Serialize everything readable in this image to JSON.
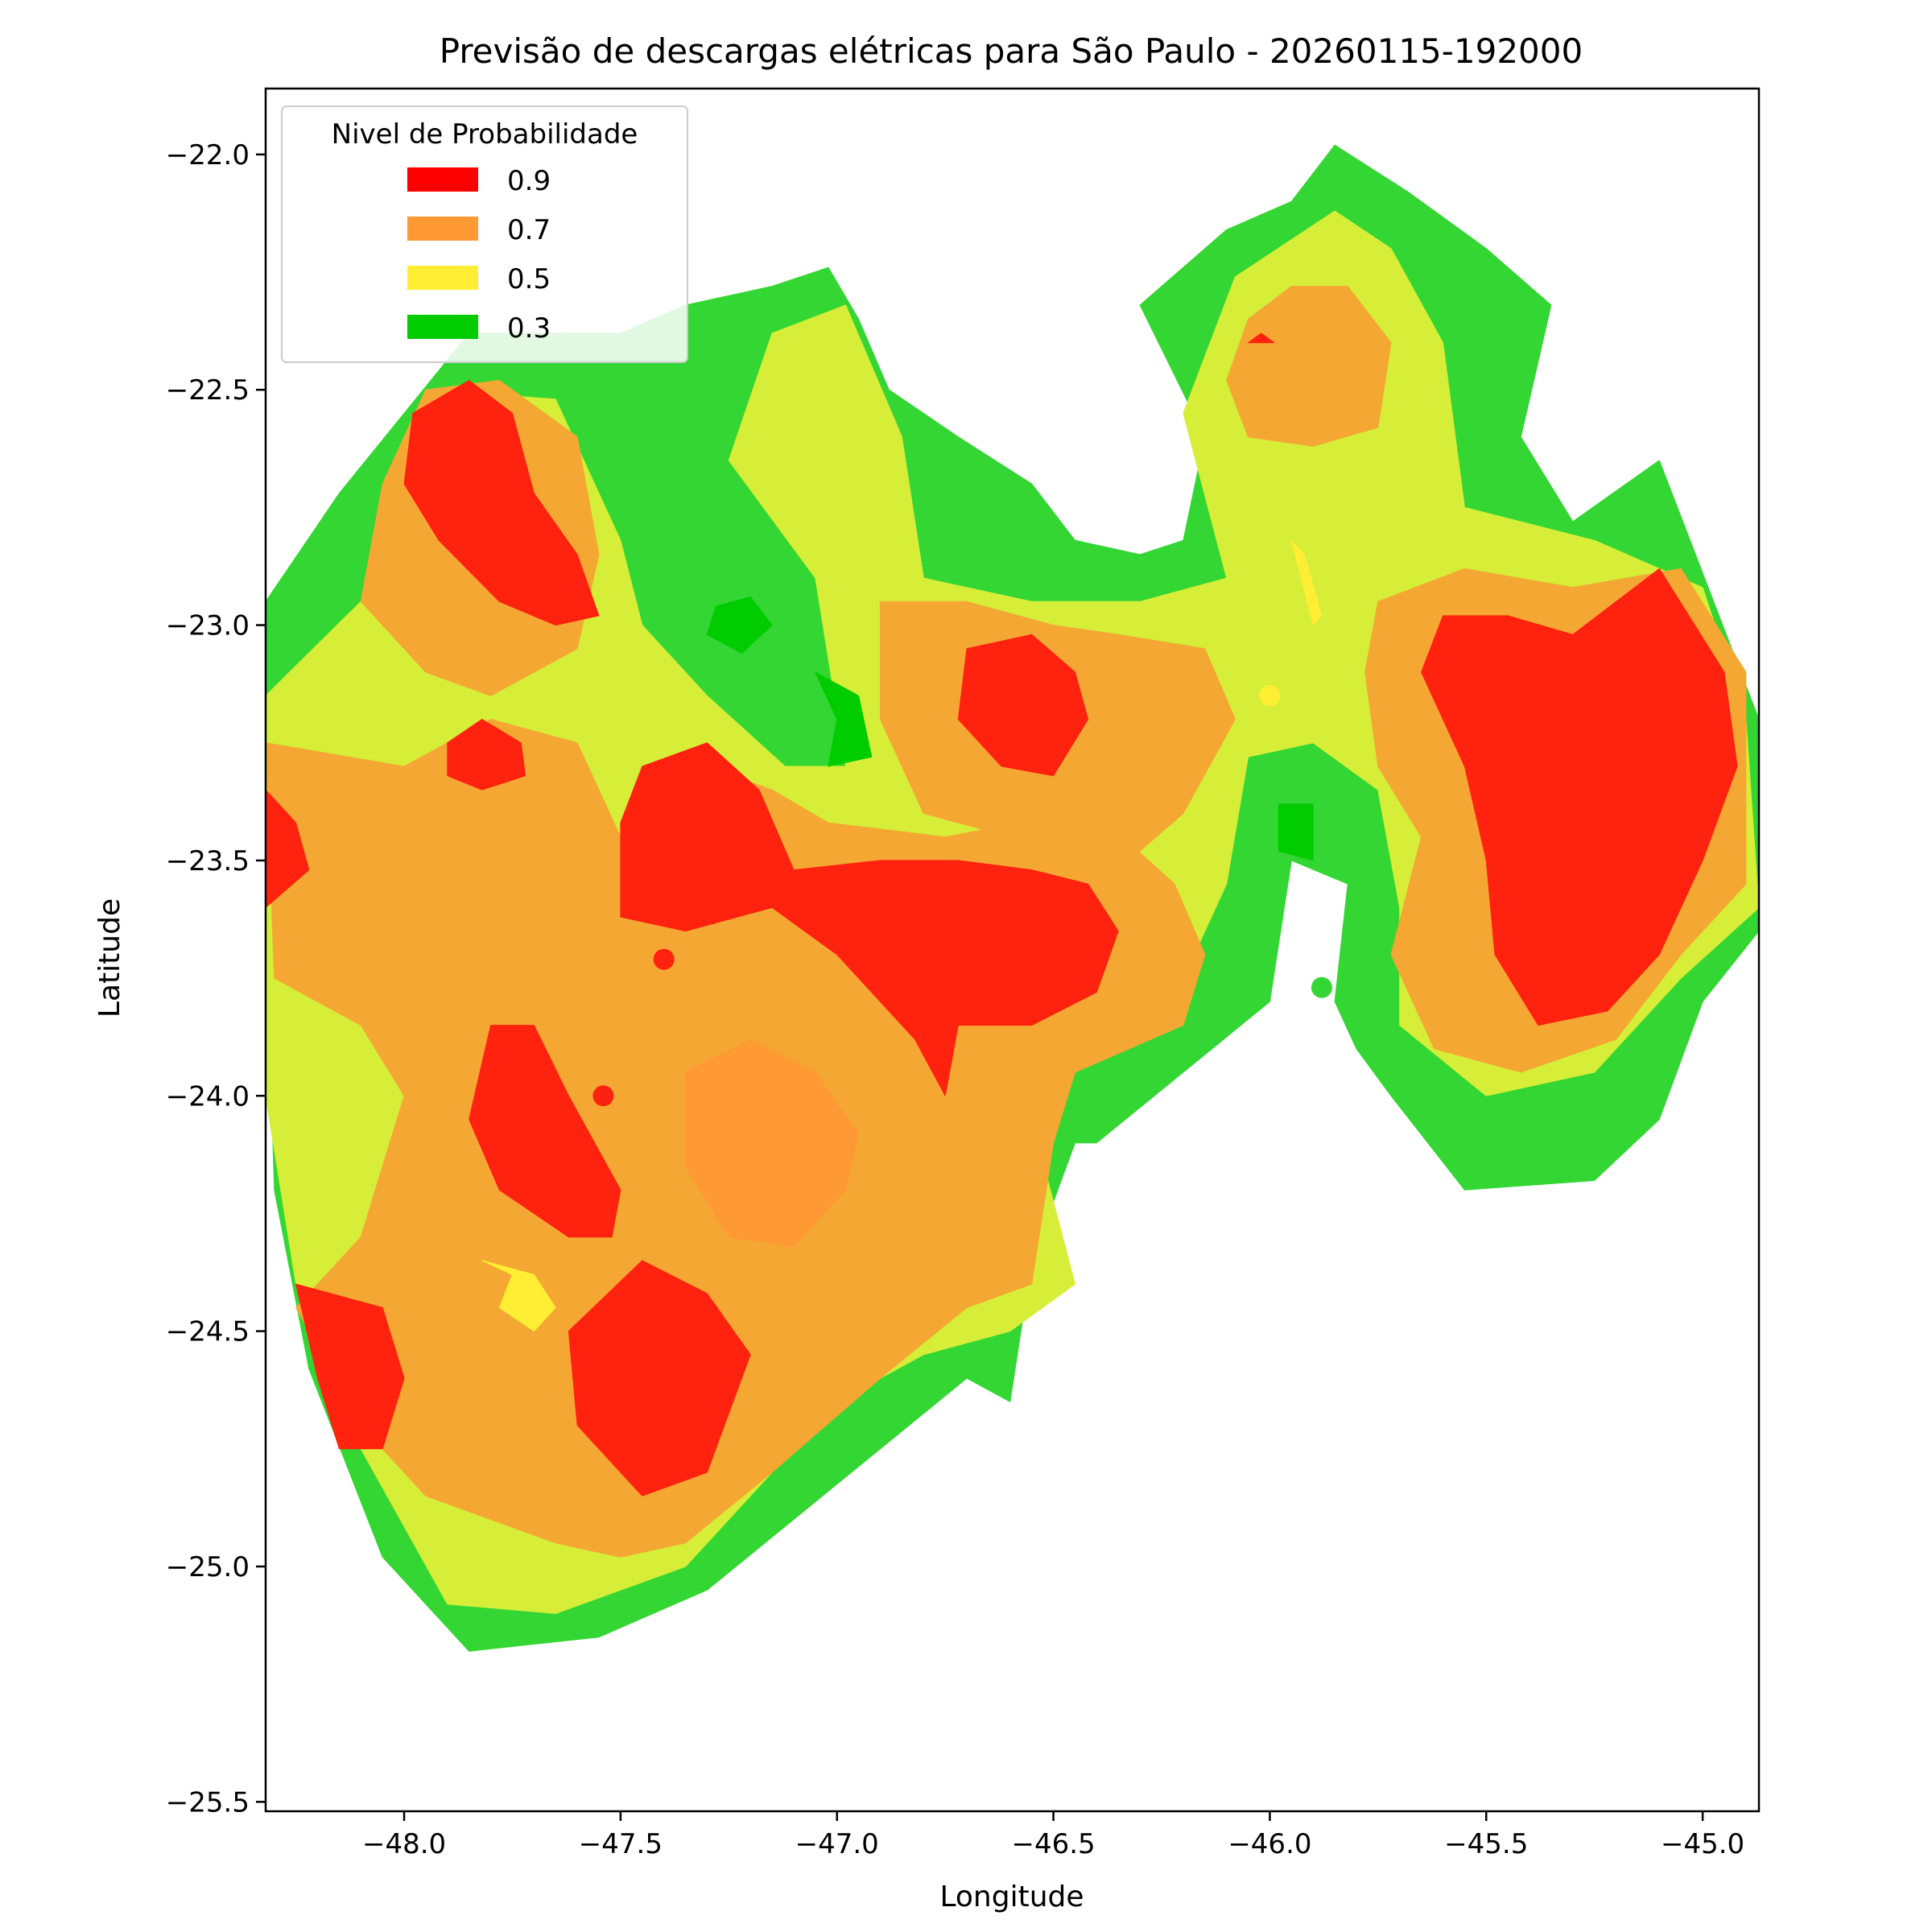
{
  "chart_data": {
    "type": "heatmap",
    "title": "Previsão de descargas elétricas para São Paulo - 20260115-192000",
    "xlabel": "Longitude",
    "ylabel": "Latitude",
    "xlim": [
      -48.32,
      -44.87
    ],
    "ylim": [
      -25.52,
      -21.86
    ],
    "x_ticks": [
      -48.0,
      -47.5,
      -47.0,
      -46.5,
      -46.0,
      -45.5,
      -45.0
    ],
    "x_tick_labels": [
      "−48.0",
      "−47.5",
      "−47.0",
      "−46.5",
      "−46.0",
      "−45.5",
      "−45.0"
    ],
    "y_ticks": [
      -22.0,
      -22.5,
      -23.0,
      -23.5,
      -24.0,
      -24.5,
      -25.0,
      -25.5
    ],
    "y_tick_labels": [
      "−22.0",
      "−22.5",
      "−23.0",
      "−23.5",
      "−24.0",
      "−24.5",
      "−25.0",
      "−25.5"
    ],
    "grid": false,
    "legend": {
      "title": "Nivel de Probabilidade",
      "placement": "top-left",
      "entries": [
        {
          "label": "0.9",
          "color": "#ff0000"
        },
        {
          "label": "0.7",
          "color": "#ff9933"
        },
        {
          "label": "0.5",
          "color": "#ffee33"
        },
        {
          "label": "0.3",
          "color": "#00cc00"
        }
      ]
    },
    "fill_colors": {
      "level_03": "#33d633",
      "level_05": "#d6ee38",
      "level_07": "#f5a733",
      "level_09": "#ff220e"
    },
    "regions": {
      "outer_03": [
        [
          -48.32,
          -22.95
        ],
        [
          -48.15,
          -22.72
        ],
        [
          -47.85,
          -22.38
        ],
        [
          -47.5,
          -22.38
        ],
        [
          -47.35,
          -22.32
        ],
        [
          -47.15,
          -22.28
        ],
        [
          -47.02,
          -22.24
        ],
        [
          -46.95,
          -22.35
        ],
        [
          -46.88,
          -22.5
        ],
        [
          -46.72,
          -22.6
        ],
        [
          -46.55,
          -22.7
        ],
        [
          -46.45,
          -22.82
        ],
        [
          -46.3,
          -22.85
        ],
        [
          -46.2,
          -22.82
        ],
        [
          -46.15,
          -22.6
        ],
        [
          -46.3,
          -22.32
        ],
        [
          -46.1,
          -22.16
        ],
        [
          -45.95,
          -22.1
        ],
        [
          -45.85,
          -21.98
        ],
        [
          -45.68,
          -22.08
        ],
        [
          -45.5,
          -22.2
        ],
        [
          -45.35,
          -22.32
        ],
        [
          -45.42,
          -22.6
        ],
        [
          -45.3,
          -22.78
        ],
        [
          -45.1,
          -22.65
        ],
        [
          -44.87,
          -23.2
        ],
        [
          -44.87,
          -23.65
        ],
        [
          -45.0,
          -23.8
        ],
        [
          -45.1,
          -24.05
        ],
        [
          -45.25,
          -24.18
        ],
        [
          -45.55,
          -24.2
        ],
        [
          -45.72,
          -24.0
        ],
        [
          -45.8,
          -23.9
        ],
        [
          -45.85,
          -23.8
        ],
        [
          -45.82,
          -23.55
        ],
        [
          -45.95,
          -23.5
        ],
        [
          -46.0,
          -23.8
        ],
        [
          -46.2,
          -23.95
        ],
        [
          -46.4,
          -24.1
        ],
        [
          -46.45,
          -24.1
        ],
        [
          -46.55,
          -24.35
        ],
        [
          -46.6,
          -24.65
        ],
        [
          -46.7,
          -24.6
        ],
        [
          -46.9,
          -24.75
        ],
        [
          -47.1,
          -24.9
        ],
        [
          -47.3,
          -25.05
        ],
        [
          -47.55,
          -25.15
        ],
        [
          -47.85,
          -25.18
        ],
        [
          -48.05,
          -24.98
        ],
        [
          -48.22,
          -24.58
        ],
        [
          -48.3,
          -24.2
        ],
        [
          -48.32,
          -23.6
        ]
      ],
      "outer_05": [
        [
          -48.32,
          -23.15
        ],
        [
          -48.1,
          -22.95
        ],
        [
          -47.95,
          -22.5
        ],
        [
          -47.65,
          -22.52
        ],
        [
          -47.5,
          -22.82
        ],
        [
          -47.45,
          -23.0
        ],
        [
          -47.3,
          -23.15
        ],
        [
          -47.12,
          -23.3
        ],
        [
          -46.98,
          -23.3
        ],
        [
          -47.05,
          -22.9
        ],
        [
          -47.25,
          -22.65
        ],
        [
          -47.15,
          -22.38
        ],
        [
          -46.98,
          -22.32
        ],
        [
          -46.85,
          -22.6
        ],
        [
          -46.8,
          -22.9
        ],
        [
          -46.55,
          -22.95
        ],
        [
          -46.3,
          -22.95
        ],
        [
          -46.1,
          -22.9
        ],
        [
          -46.2,
          -22.55
        ],
        [
          -46.08,
          -22.26
        ],
        [
          -45.85,
          -22.12
        ],
        [
          -45.72,
          -22.2
        ],
        [
          -45.6,
          -22.4
        ],
        [
          -45.55,
          -22.75
        ],
        [
          -45.25,
          -22.82
        ],
        [
          -45.0,
          -22.92
        ],
        [
          -44.9,
          -23.2
        ],
        [
          -44.87,
          -23.6
        ],
        [
          -45.05,
          -23.75
        ],
        [
          -45.25,
          -23.95
        ],
        [
          -45.5,
          -24.0
        ],
        [
          -45.7,
          -23.85
        ],
        [
          -45.7,
          -23.6
        ],
        [
          -45.75,
          -23.35
        ],
        [
          -45.9,
          -23.25
        ],
        [
          -46.05,
          -23.28
        ],
        [
          -46.1,
          -23.55
        ],
        [
          -46.2,
          -23.75
        ],
        [
          -46.45,
          -23.85
        ],
        [
          -46.55,
          -24.05
        ],
        [
          -46.45,
          -24.4
        ],
        [
          -46.6,
          -24.5
        ],
        [
          -46.8,
          -24.55
        ],
        [
          -47.0,
          -24.65
        ],
        [
          -47.2,
          -24.85
        ],
        [
          -47.35,
          -25.0
        ],
        [
          -47.65,
          -25.1
        ],
        [
          -47.9,
          -25.08
        ],
        [
          -48.1,
          -24.75
        ],
        [
          -48.25,
          -24.4
        ],
        [
          -48.32,
          -24.0
        ]
      ],
      "orange_west": [
        [
          -48.32,
          -23.25
        ],
        [
          -48.0,
          -23.3
        ],
        [
          -47.8,
          -23.2
        ],
        [
          -47.6,
          -23.25
        ],
        [
          -47.5,
          -23.45
        ],
        [
          -47.45,
          -23.38
        ],
        [
          -47.3,
          -23.3
        ],
        [
          -47.15,
          -23.35
        ],
        [
          -47.02,
          -23.42
        ],
        [
          -46.75,
          -23.45
        ],
        [
          -46.58,
          -23.42
        ],
        [
          -46.4,
          -23.4
        ],
        [
          -46.22,
          -23.55
        ],
        [
          -46.15,
          -23.7
        ],
        [
          -46.2,
          -23.85
        ],
        [
          -46.45,
          -23.95
        ],
        [
          -46.5,
          -24.1
        ],
        [
          -46.55,
          -24.4
        ],
        [
          -46.7,
          -24.45
        ],
        [
          -46.9,
          -24.6
        ],
        [
          -47.15,
          -24.8
        ],
        [
          -47.35,
          -24.95
        ],
        [
          -47.5,
          -24.98
        ],
        [
          -47.65,
          -24.95
        ],
        [
          -47.95,
          -24.85
        ],
        [
          -48.1,
          -24.7
        ],
        [
          -48.25,
          -24.45
        ],
        [
          -48.1,
          -24.3
        ],
        [
          -48.0,
          -24.0
        ],
        [
          -48.1,
          -23.85
        ],
        [
          -48.3,
          -23.75
        ]
      ],
      "orange_nw": [
        [
          -48.1,
          -22.95
        ],
        [
          -48.05,
          -22.7
        ],
        [
          -47.95,
          -22.5
        ],
        [
          -47.78,
          -22.48
        ],
        [
          -47.6,
          -22.6
        ],
        [
          -47.55,
          -22.85
        ],
        [
          -47.6,
          -23.05
        ],
        [
          -47.7,
          -23.1
        ],
        [
          -47.8,
          -23.15
        ],
        [
          -47.95,
          -23.1
        ]
      ],
      "orange_center": [
        [
          -46.9,
          -22.95
        ],
        [
          -46.7,
          -22.95
        ],
        [
          -46.5,
          -23.0
        ],
        [
          -46.35,
          -23.02
        ],
        [
          -46.15,
          -23.05
        ],
        [
          -46.08,
          -23.2
        ],
        [
          -46.2,
          -23.4
        ],
        [
          -46.35,
          -23.52
        ],
        [
          -46.6,
          -23.45
        ],
        [
          -46.8,
          -23.4
        ],
        [
          -46.9,
          -23.2
        ]
      ],
      "orange_east": [
        [
          -45.75,
          -22.95
        ],
        [
          -45.55,
          -22.88
        ],
        [
          -45.3,
          -22.92
        ],
        [
          -45.05,
          -22.88
        ],
        [
          -44.9,
          -23.1
        ],
        [
          -44.9,
          -23.55
        ],
        [
          -45.05,
          -23.7
        ],
        [
          -45.2,
          -23.88
        ],
        [
          -45.42,
          -23.95
        ],
        [
          -45.62,
          -23.9
        ],
        [
          -45.72,
          -23.7
        ],
        [
          -45.65,
          -23.45
        ],
        [
          -45.75,
          -23.3
        ],
        [
          -45.78,
          -23.1
        ]
      ],
      "orange_ne": [
        [
          -46.1,
          -22.48
        ],
        [
          -46.05,
          -22.35
        ],
        [
          -45.95,
          -22.28
        ],
        [
          -45.82,
          -22.28
        ],
        [
          -45.72,
          -22.4
        ],
        [
          -45.75,
          -22.58
        ],
        [
          -45.9,
          -22.62
        ],
        [
          -46.05,
          -22.6
        ]
      ],
      "orange_blob": [
        [
          -47.35,
          -23.95
        ],
        [
          -47.2,
          -23.88
        ],
        [
          -47.05,
          -23.95
        ],
        [
          -46.95,
          -24.08
        ],
        [
          -46.98,
          -24.2
        ],
        [
          -47.1,
          -24.32
        ],
        [
          -47.25,
          -24.3
        ],
        [
          -47.35,
          -24.15
        ]
      ],
      "red_nw": [
        [
          -47.98,
          -22.55
        ],
        [
          -47.85,
          -22.48
        ],
        [
          -47.75,
          -22.55
        ],
        [
          -47.7,
          -22.72
        ],
        [
          -47.6,
          -22.85
        ],
        [
          -47.55,
          -22.98
        ],
        [
          -47.65,
          -23.0
        ],
        [
          -47.78,
          -22.95
        ],
        [
          -47.92,
          -22.82
        ],
        [
          -48.0,
          -22.7
        ]
      ],
      "red_small_w": [
        [
          -47.9,
          -23.25
        ],
        [
          -47.82,
          -23.2
        ],
        [
          -47.73,
          -23.25
        ],
        [
          -47.72,
          -23.32
        ],
        [
          -47.82,
          -23.35
        ],
        [
          -47.9,
          -23.32
        ]
      ],
      "red_west_edge": [
        [
          -48.32,
          -23.35
        ],
        [
          -48.25,
          -23.42
        ],
        [
          -48.22,
          -23.52
        ],
        [
          -48.32,
          -23.6
        ]
      ],
      "red_center": [
        [
          -47.45,
          -23.3
        ],
        [
          -47.3,
          -23.25
        ],
        [
          -47.18,
          -23.35
        ],
        [
          -47.1,
          -23.52
        ],
        [
          -46.9,
          -23.5
        ],
        [
          -46.72,
          -23.5
        ],
        [
          -46.55,
          -23.52
        ],
        [
          -46.42,
          -23.55
        ],
        [
          -46.35,
          -23.65
        ],
        [
          -46.4,
          -23.78
        ],
        [
          -46.55,
          -23.85
        ],
        [
          -46.72,
          -23.85
        ],
        [
          -46.75,
          -24.0
        ],
        [
          -46.82,
          -23.88
        ],
        [
          -47.0,
          -23.7
        ],
        [
          -47.15,
          -23.6
        ],
        [
          -47.35,
          -23.65
        ],
        [
          -47.5,
          -23.62
        ],
        [
          -47.5,
          -23.42
        ]
      ],
      "red_center_n": [
        [
          -46.7,
          -23.05
        ],
        [
          -46.55,
          -23.02
        ],
        [
          -46.45,
          -23.1
        ],
        [
          -46.42,
          -23.2
        ],
        [
          -46.5,
          -23.32
        ],
        [
          -46.62,
          -23.3
        ],
        [
          -46.72,
          -23.2
        ]
      ],
      "red_east": [
        [
          -45.6,
          -22.98
        ],
        [
          -45.45,
          -22.98
        ],
        [
          -45.3,
          -23.02
        ],
        [
          -45.1,
          -22.88
        ],
        [
          -44.95,
          -23.1
        ],
        [
          -44.92,
          -23.3
        ],
        [
          -45.0,
          -23.5
        ],
        [
          -45.1,
          -23.7
        ],
        [
          -45.22,
          -23.82
        ],
        [
          -45.38,
          -23.85
        ],
        [
          -45.48,
          -23.7
        ],
        [
          -45.5,
          -23.5
        ],
        [
          -45.55,
          -23.3
        ],
        [
          -45.65,
          -23.1
        ]
      ],
      "red_ne_tip": [
        [
          -46.02,
          -22.38
        ],
        [
          -45.99,
          -22.4
        ],
        [
          -46.05,
          -22.4
        ]
      ],
      "red_sw1": [
        [
          -47.8,
          -23.85
        ],
        [
          -47.7,
          -23.85
        ],
        [
          -47.62,
          -24.0
        ],
        [
          -47.5,
          -24.2
        ],
        [
          -47.52,
          -24.3
        ],
        [
          -47.62,
          -24.3
        ],
        [
          -47.78,
          -24.2
        ],
        [
          -47.85,
          -24.05
        ]
      ],
      "red_sw2": [
        [
          -47.45,
          -24.35
        ],
        [
          -47.3,
          -24.42
        ],
        [
          -47.2,
          -24.55
        ],
        [
          -47.3,
          -24.8
        ],
        [
          -47.45,
          -24.85
        ],
        [
          -47.6,
          -24.7
        ],
        [
          -47.62,
          -24.5
        ]
      ],
      "red_sw_edge": [
        [
          -48.25,
          -24.4
        ],
        [
          -48.05,
          -24.45
        ],
        [
          -48.0,
          -24.6
        ],
        [
          -48.05,
          -24.75
        ],
        [
          -48.15,
          -24.75
        ],
        [
          -48.2,
          -24.6
        ]
      ],
      "green_dark_1": [
        [
          -47.28,
          -22.96
        ],
        [
          -47.2,
          -22.94
        ],
        [
          -47.15,
          -23.0
        ],
        [
          -47.22,
          -23.06
        ],
        [
          -47.3,
          -23.02
        ]
      ],
      "green_dark_2": [
        [
          -47.05,
          -23.1
        ],
        [
          -47.0,
          -23.2
        ],
        [
          -47.02,
          -23.3
        ],
        [
          -46.92,
          -23.28
        ],
        [
          -46.95,
          -23.15
        ]
      ],
      "green_dark_3": [
        [
          -45.98,
          -23.38
        ],
        [
          -45.9,
          -23.38
        ],
        [
          -45.9,
          -23.5
        ],
        [
          -45.98,
          -23.48
        ]
      ],
      "yellow_bright_1": [
        [
          -47.82,
          -24.35
        ],
        [
          -47.75,
          -24.38
        ],
        [
          -47.78,
          -24.45
        ],
        [
          -47.7,
          -24.5
        ],
        [
          -47.65,
          -24.45
        ],
        [
          -47.7,
          -24.38
        ]
      ],
      "yellow_bright_2": [
        [
          -45.95,
          -22.82
        ],
        [
          -45.92,
          -22.85
        ],
        [
          -45.88,
          -22.98
        ],
        [
          -45.9,
          -23.0
        ]
      ]
    },
    "markers": [
      {
        "lon": -48.3,
        "lat": -23.49,
        "level": "0.9"
      },
      {
        "lon": -47.4,
        "lat": -23.71,
        "level": "0.9"
      },
      {
        "lon": -47.54,
        "lat": -24.0,
        "level": "0.9"
      },
      {
        "lon": -46.0,
        "lat": -23.15,
        "level": "0.5"
      },
      {
        "lon": -45.88,
        "lat": -23.77,
        "level": "0.3"
      }
    ]
  }
}
